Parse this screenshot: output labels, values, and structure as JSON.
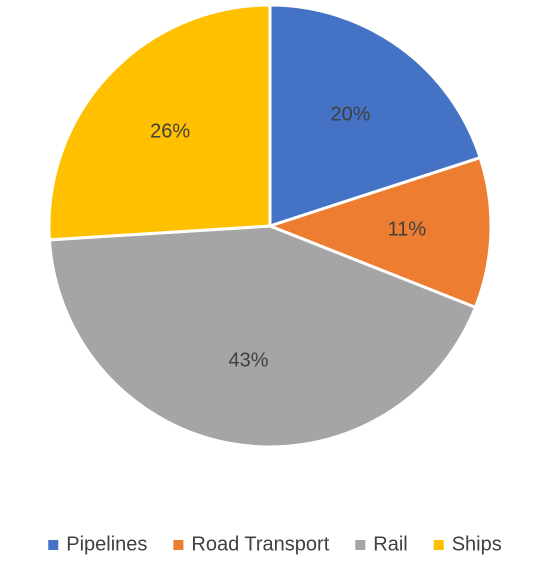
{
  "chart_data": {
    "type": "pie",
    "title": "",
    "legend_position": "bottom",
    "start_angle_deg": 0,
    "direction": "clockwise",
    "slices": [
      {
        "name": "Pipelines",
        "value": 20,
        "label": "20%",
        "color": "#4472C4"
      },
      {
        "name": "Road Transport",
        "value": 11,
        "label": "11%",
        "color": "#ED7D31"
      },
      {
        "name": "Rail",
        "value": 43,
        "label": "43%",
        "color": "#A5A5A5"
      },
      {
        "name": "Ships",
        "value": 26,
        "label": "26%",
        "color": "#FFC000"
      }
    ]
  }
}
